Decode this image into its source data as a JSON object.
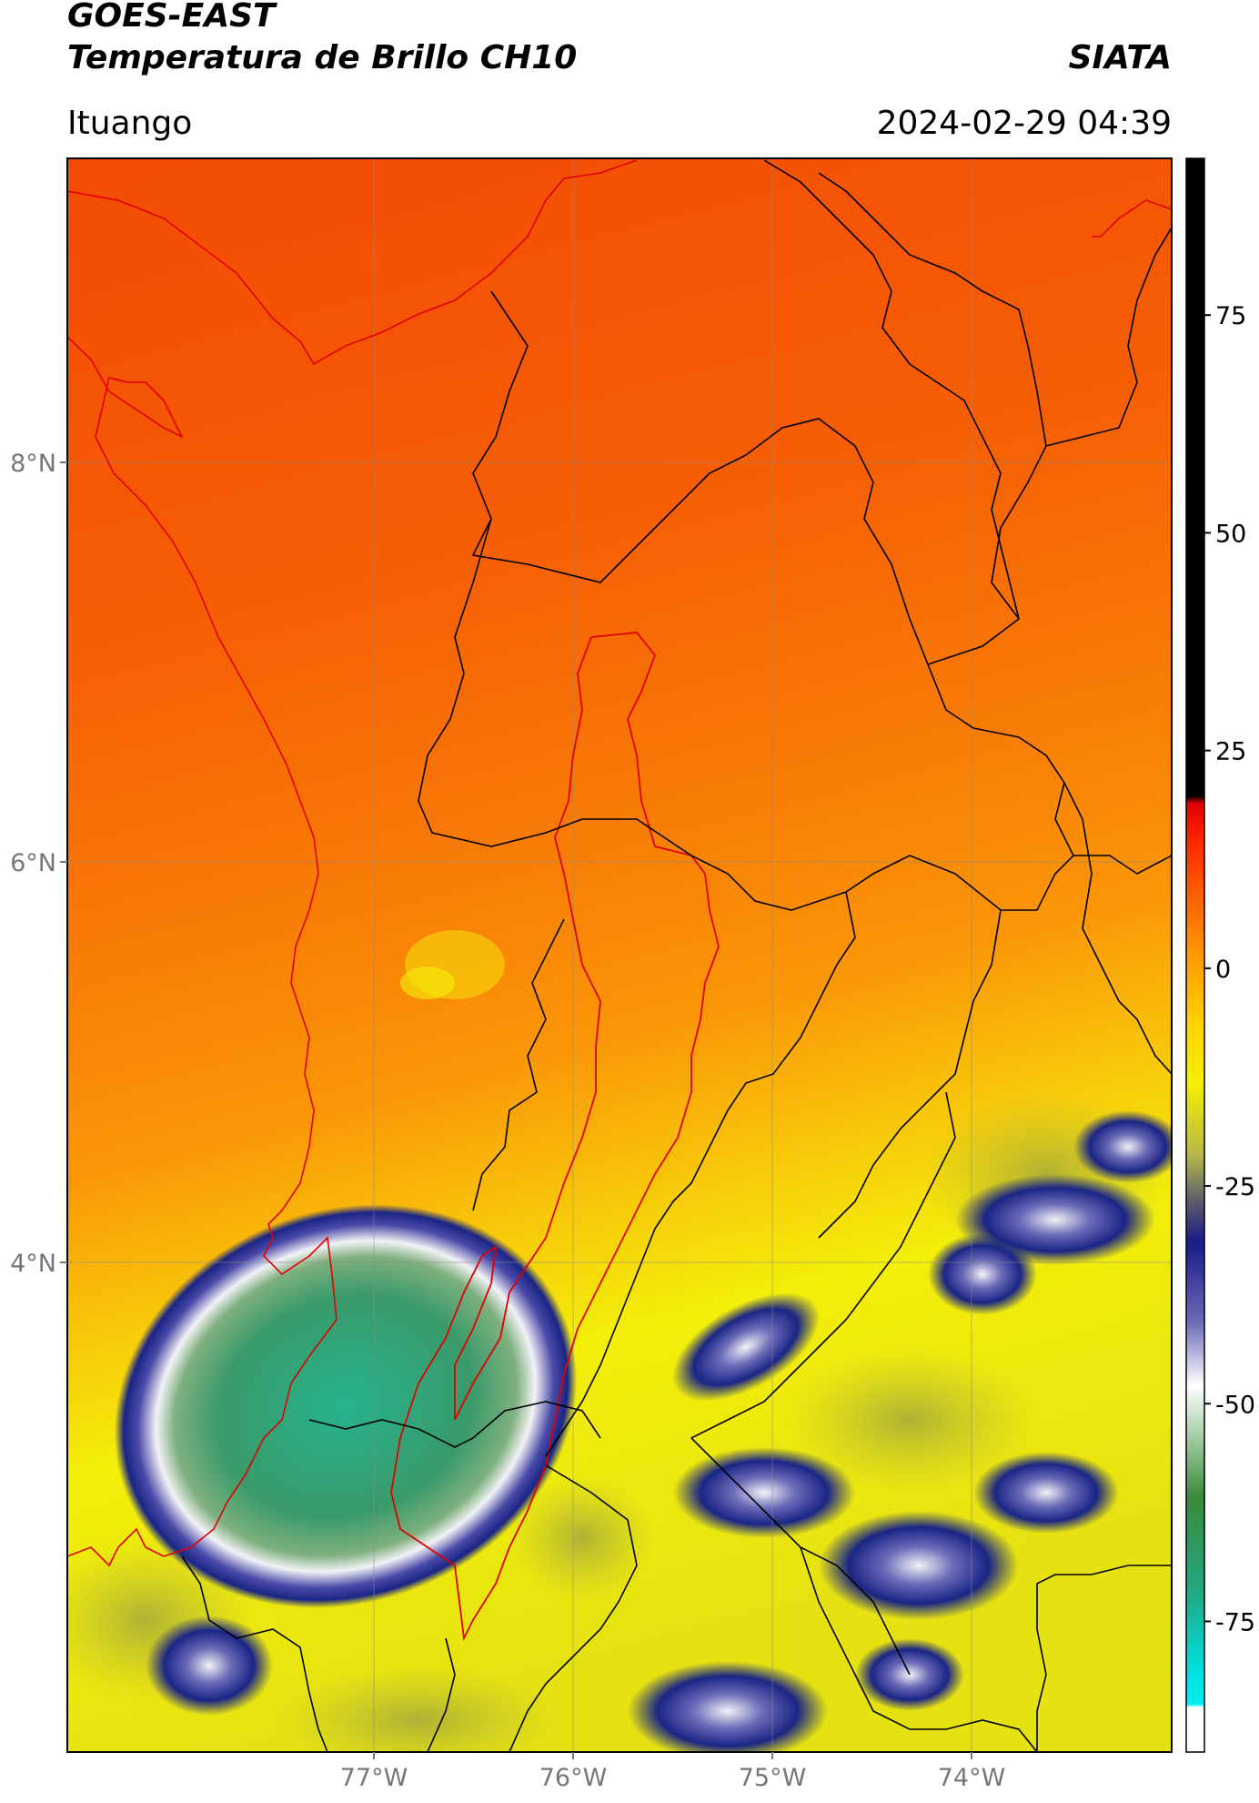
{
  "header": {
    "satellite": "GOES-EAST",
    "product": "Temperatura de Brillo CH10",
    "org": "SIATA",
    "region": "Ituango",
    "datetime": "2024-02-29 04:39"
  },
  "map": {
    "lat_labels": [
      "8°N",
      "6°N",
      "4°N"
    ],
    "lon_labels": [
      "77°W",
      "76°W",
      "75°W",
      "74°W"
    ],
    "lat_range": [
      2.6,
      9.55
    ],
    "lon_range": [
      -78.55,
      -73.0
    ],
    "colors": {
      "warm_dark": "#f24b05",
      "warm": "#f86e05",
      "orange": "#fa9a08",
      "yellow": "#f3ee0a",
      "olive": "#b8ba3a",
      "navy": "#1a2585",
      "white": "#f2f2f6",
      "green": "#4a9a5e",
      "teal": "#26b38e"
    }
  },
  "colorbar": {
    "ticks": [
      "75",
      "50",
      "25",
      "0",
      "-25",
      "-50",
      "-75"
    ],
    "tick_values": [
      75,
      50,
      25,
      0,
      -25,
      -50,
      -75
    ],
    "range": [
      -90,
      93
    ]
  }
}
